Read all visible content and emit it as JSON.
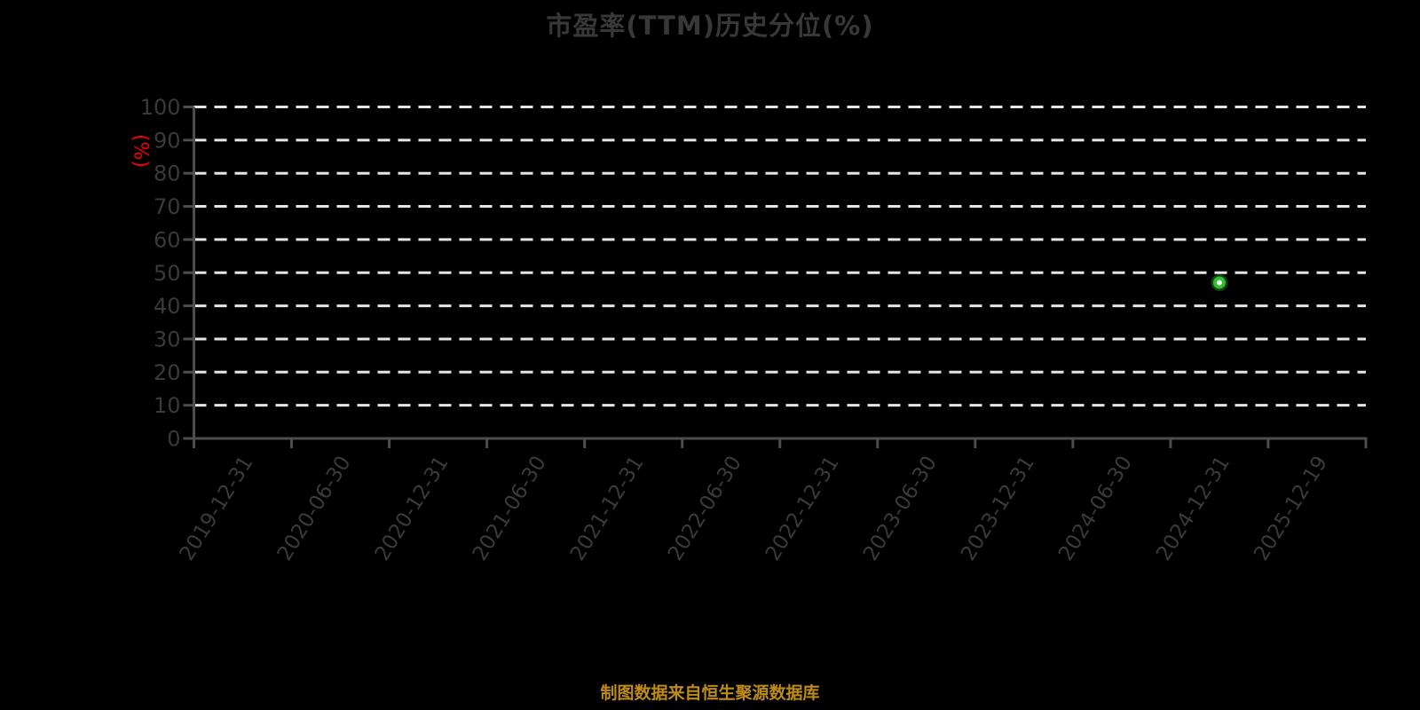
{
  "title": "市盈率(TTM)历史分位(%)",
  "footer": "制图数据来自恒生聚源数据库",
  "chart_data": {
    "type": "scatter",
    "title": "市盈率(TTM)历史分位(%)",
    "xlabel": "",
    "ylabel": "(%)",
    "ylim": [
      0,
      100
    ],
    "y_ticks": [
      0,
      10,
      20,
      30,
      40,
      50,
      60,
      70,
      80,
      90,
      100
    ],
    "categories": [
      "2019-12-31",
      "2020-06-30",
      "2020-12-31",
      "2021-06-30",
      "2021-12-31",
      "2022-06-30",
      "2022-12-31",
      "2023-06-30",
      "2023-12-31",
      "2024-06-30",
      "2024-12-31",
      "2025-12-19"
    ],
    "series": [
      {
        "points": [
          {
            "x": "2024-12-31",
            "y": 47
          }
        ]
      }
    ],
    "grid": "horizontal-dashed",
    "legend": "none",
    "x_label_rotation_deg": -58
  },
  "colors": {
    "background": "#000000",
    "title_text": "#383838",
    "tick_label": "#3a3a3a",
    "axis_line": "#4d4d4d",
    "gridline": "#e6e6e6",
    "y_unit_label": "#f40000",
    "point_fill": "#ffffff",
    "point_stroke": "#32be32",
    "point_glow": "rgba(50,190,50,0.35)",
    "footer_text": "#be8c14"
  }
}
